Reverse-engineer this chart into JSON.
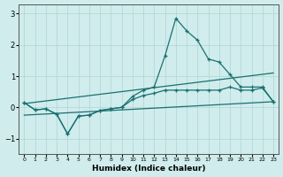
{
  "xlabel": "Humidex (Indice chaleur)",
  "bg_color": "#d0ecec",
  "grid_color": "#b0d4d4",
  "line_color": "#1a7070",
  "xlim": [
    -0.5,
    23.5
  ],
  "ylim": [
    -1.5,
    3.3
  ],
  "xticks": [
    0,
    1,
    2,
    3,
    4,
    5,
    6,
    7,
    8,
    9,
    10,
    11,
    12,
    13,
    14,
    15,
    16,
    17,
    18,
    19,
    20,
    21,
    22,
    23
  ],
  "yticks": [
    -1,
    0,
    1,
    2,
    3
  ],
  "curve_upper_x": [
    0,
    1,
    2,
    3,
    4,
    5,
    6,
    7,
    8,
    9,
    10,
    11,
    12,
    13,
    14,
    15,
    16,
    17,
    18,
    19,
    20,
    21,
    22,
    23
  ],
  "curve_upper_y": [
    0.15,
    -0.08,
    -0.05,
    -0.22,
    -0.85,
    -0.28,
    -0.25,
    -0.1,
    -0.05,
    0.0,
    0.35,
    0.55,
    0.65,
    1.65,
    2.85,
    2.45,
    2.15,
    1.55,
    1.45,
    1.05,
    0.65,
    0.65,
    0.65,
    0.18
  ],
  "curve_lower_x": [
    0,
    1,
    2,
    3,
    4,
    5,
    6,
    7,
    8,
    9,
    10,
    11,
    12,
    13,
    14,
    15,
    16,
    17,
    18,
    19,
    20,
    21,
    22,
    23
  ],
  "curve_lower_y": [
    0.15,
    -0.08,
    -0.05,
    -0.22,
    -0.85,
    -0.28,
    -0.25,
    -0.1,
    -0.05,
    0.0,
    0.25,
    0.38,
    0.45,
    0.55,
    0.55,
    0.55,
    0.55,
    0.55,
    0.55,
    0.65,
    0.55,
    0.55,
    0.62,
    0.18
  ],
  "trend1_x": [
    0,
    23
  ],
  "trend1_y": [
    0.12,
    1.1
  ],
  "trend2_x": [
    0,
    23
  ],
  "trend2_y": [
    -0.25,
    0.18
  ]
}
